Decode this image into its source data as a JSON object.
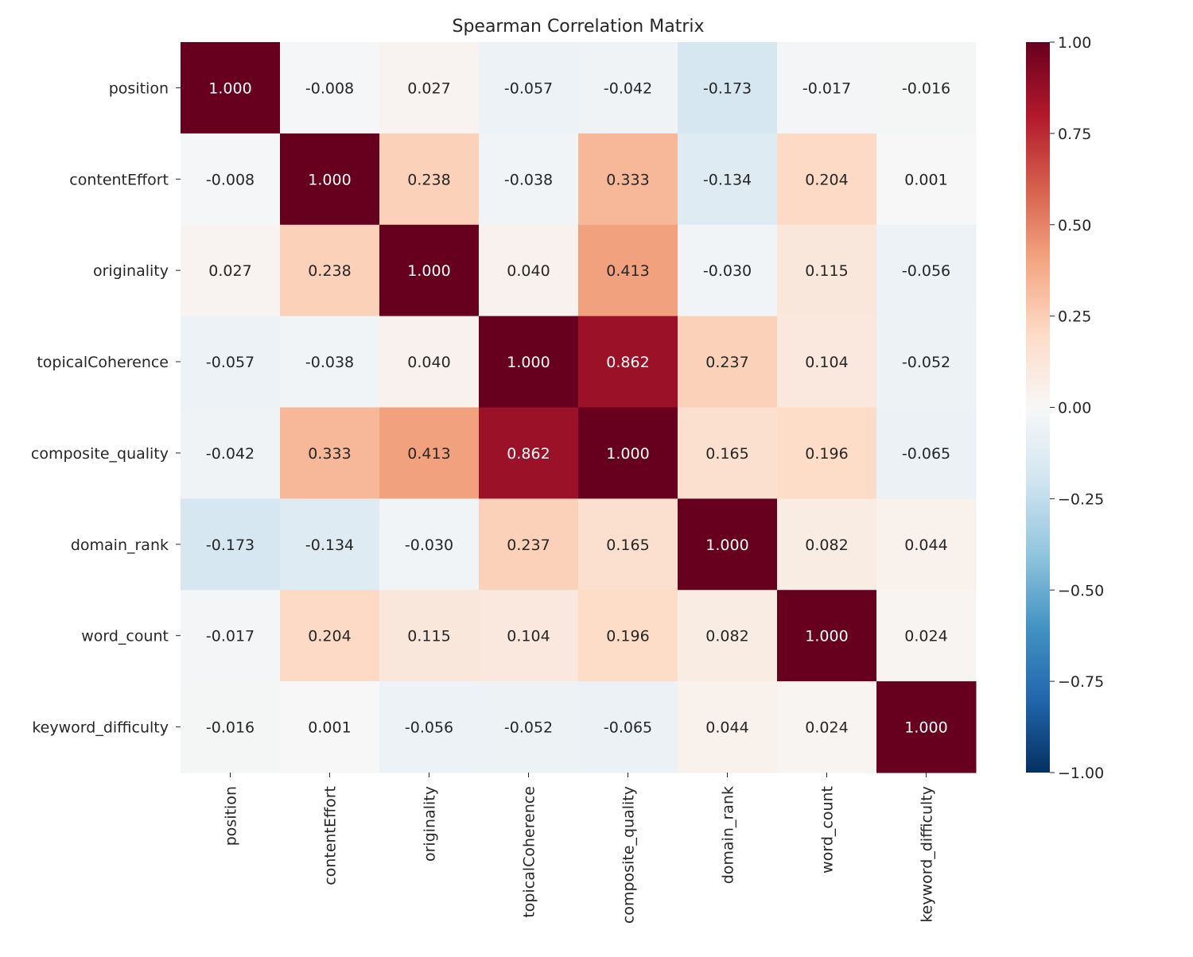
{
  "chart_data": {
    "type": "heatmap",
    "title": "Spearman Correlation Matrix",
    "colormap": "RdBu_r",
    "vmin": -1.0,
    "vmax": 1.0,
    "labels": [
      "position",
      "contentEffort",
      "originality",
      "topicalCoherence",
      "composite_quality",
      "domain_rank",
      "word_count",
      "keyword_difficulty"
    ],
    "matrix": [
      [
        1.0,
        -0.008,
        0.027,
        -0.057,
        -0.042,
        -0.173,
        -0.017,
        -0.016
      ],
      [
        -0.008,
        1.0,
        0.238,
        -0.038,
        0.333,
        -0.134,
        0.204,
        0.001
      ],
      [
        0.027,
        0.238,
        1.0,
        0.04,
        0.413,
        -0.03,
        0.115,
        -0.056
      ],
      [
        -0.057,
        -0.038,
        0.04,
        1.0,
        0.862,
        0.237,
        0.104,
        -0.052
      ],
      [
        -0.042,
        0.333,
        0.413,
        0.862,
        1.0,
        0.165,
        0.196,
        -0.065
      ],
      [
        -0.173,
        -0.134,
        -0.03,
        0.237,
        0.165,
        1.0,
        0.082,
        0.044
      ],
      [
        -0.017,
        0.204,
        0.115,
        0.104,
        0.196,
        0.082,
        1.0,
        0.024
      ],
      [
        -0.016,
        0.001,
        -0.056,
        -0.052,
        -0.065,
        0.044,
        0.024,
        1.0
      ]
    ],
    "colorbar_ticks": [
      "1.00",
      "0.75",
      "0.50",
      "0.25",
      "0.00",
      "−0.25",
      "−0.50",
      "−0.75",
      "−1.00"
    ],
    "colorbar_tick_values": [
      1.0,
      0.75,
      0.5,
      0.25,
      0.0,
      -0.25,
      -0.5,
      -0.75,
      -1.0
    ]
  }
}
